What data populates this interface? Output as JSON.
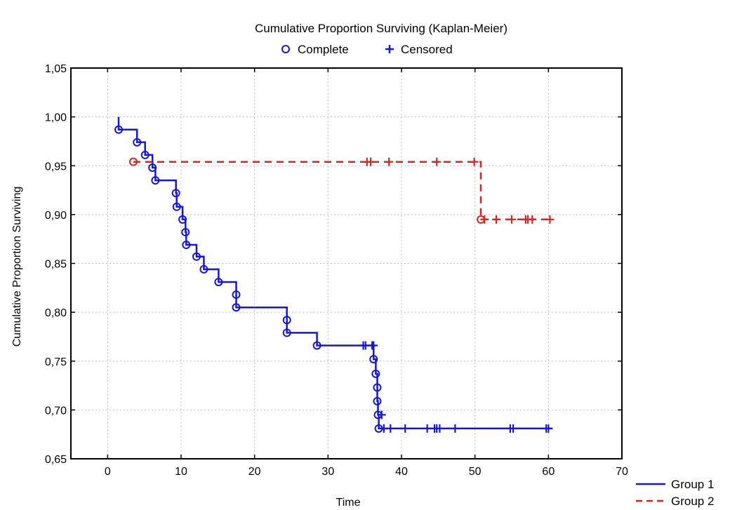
{
  "chart_data": {
    "type": "line",
    "title": "Cumulative Proportion Surviving (Kaplan-Meier)",
    "marker_legend": [
      {
        "label": "Complete",
        "marker": "circle",
        "color": "#1515e0"
      },
      {
        "label": "Censored",
        "marker": "plus",
        "color": "#1515e0"
      }
    ],
    "xlabel": "Time",
    "ylabel": "Cumulative Proportion Surviving",
    "xlim": [
      -5,
      70
    ],
    "ylim": [
      0.65,
      1.05
    ],
    "x_ticks": [
      0,
      10,
      20,
      30,
      40,
      50,
      60,
      70
    ],
    "x_tick_labels": [
      "0",
      "10",
      "20",
      "30",
      "40",
      "50",
      "60",
      "70"
    ],
    "y_ticks": [
      0.65,
      0.7,
      0.75,
      0.8,
      0.85,
      0.9,
      0.95,
      1.0,
      1.05
    ],
    "y_tick_labels": [
      "0,65",
      "0,70",
      "0,75",
      "0,80",
      "0,85",
      "0,90",
      "0,95",
      "1,00",
      "1,05"
    ],
    "grid": true,
    "series": [
      {
        "name": "Group 1",
        "color": "#1515e0",
        "dash": false,
        "start_y": 1.0,
        "events": [
          [
            1.5,
            0.987
          ],
          [
            4.0,
            0.974
          ],
          [
            5.1,
            0.961
          ],
          [
            6.1,
            0.948
          ],
          [
            6.5,
            0.935
          ],
          [
            9.3,
            0.922
          ],
          [
            9.4,
            0.908
          ],
          [
            10.2,
            0.895
          ],
          [
            10.6,
            0.882
          ],
          [
            10.7,
            0.869
          ],
          [
            12.1,
            0.857
          ],
          [
            13.1,
            0.844
          ],
          [
            15.1,
            0.831
          ],
          [
            17.5,
            0.818
          ],
          [
            17.5,
            0.805
          ],
          [
            24.4,
            0.792
          ],
          [
            24.4,
            0.779
          ],
          [
            28.5,
            0.766
          ],
          [
            36.2,
            0.752
          ],
          [
            36.5,
            0.737
          ],
          [
            36.7,
            0.723
          ],
          [
            36.7,
            0.709
          ],
          [
            36.8,
            0.695
          ],
          [
            36.9,
            0.681
          ]
        ],
        "censored": [
          [
            34.8,
            0.766
          ],
          [
            35.1,
            0.766
          ],
          [
            36.0,
            0.766
          ],
          [
            36.2,
            0.766
          ],
          [
            37.3,
            0.695
          ],
          [
            37.6,
            0.681
          ],
          [
            38.5,
            0.681
          ],
          [
            40.5,
            0.681
          ],
          [
            43.5,
            0.681
          ],
          [
            44.5,
            0.681
          ],
          [
            44.8,
            0.681
          ],
          [
            45.2,
            0.681
          ],
          [
            47.3,
            0.681
          ],
          [
            54.8,
            0.681
          ],
          [
            55.2,
            0.681
          ],
          [
            59.7,
            0.681
          ],
          [
            60.0,
            0.681
          ]
        ],
        "end_x": 60.5
      },
      {
        "name": "Group 2",
        "color": "#e02020",
        "dash": true,
        "start_y": 1.0,
        "events": [
          [
            3.5,
            0.954
          ],
          [
            50.8,
            0.895
          ]
        ],
        "censored": [
          [
            35.3,
            0.954
          ],
          [
            35.8,
            0.954
          ],
          [
            38.3,
            0.954
          ],
          [
            44.8,
            0.954
          ],
          [
            49.9,
            0.954
          ],
          [
            51.3,
            0.895
          ],
          [
            52.9,
            0.895
          ],
          [
            55.0,
            0.895
          ],
          [
            56.9,
            0.895
          ],
          [
            57.2,
            0.895
          ],
          [
            57.8,
            0.895
          ],
          [
            60.2,
            0.895
          ]
        ],
        "end_x": 60.5,
        "hide_before_first_event": true
      }
    ],
    "series_legend_position": "bottom-right"
  }
}
